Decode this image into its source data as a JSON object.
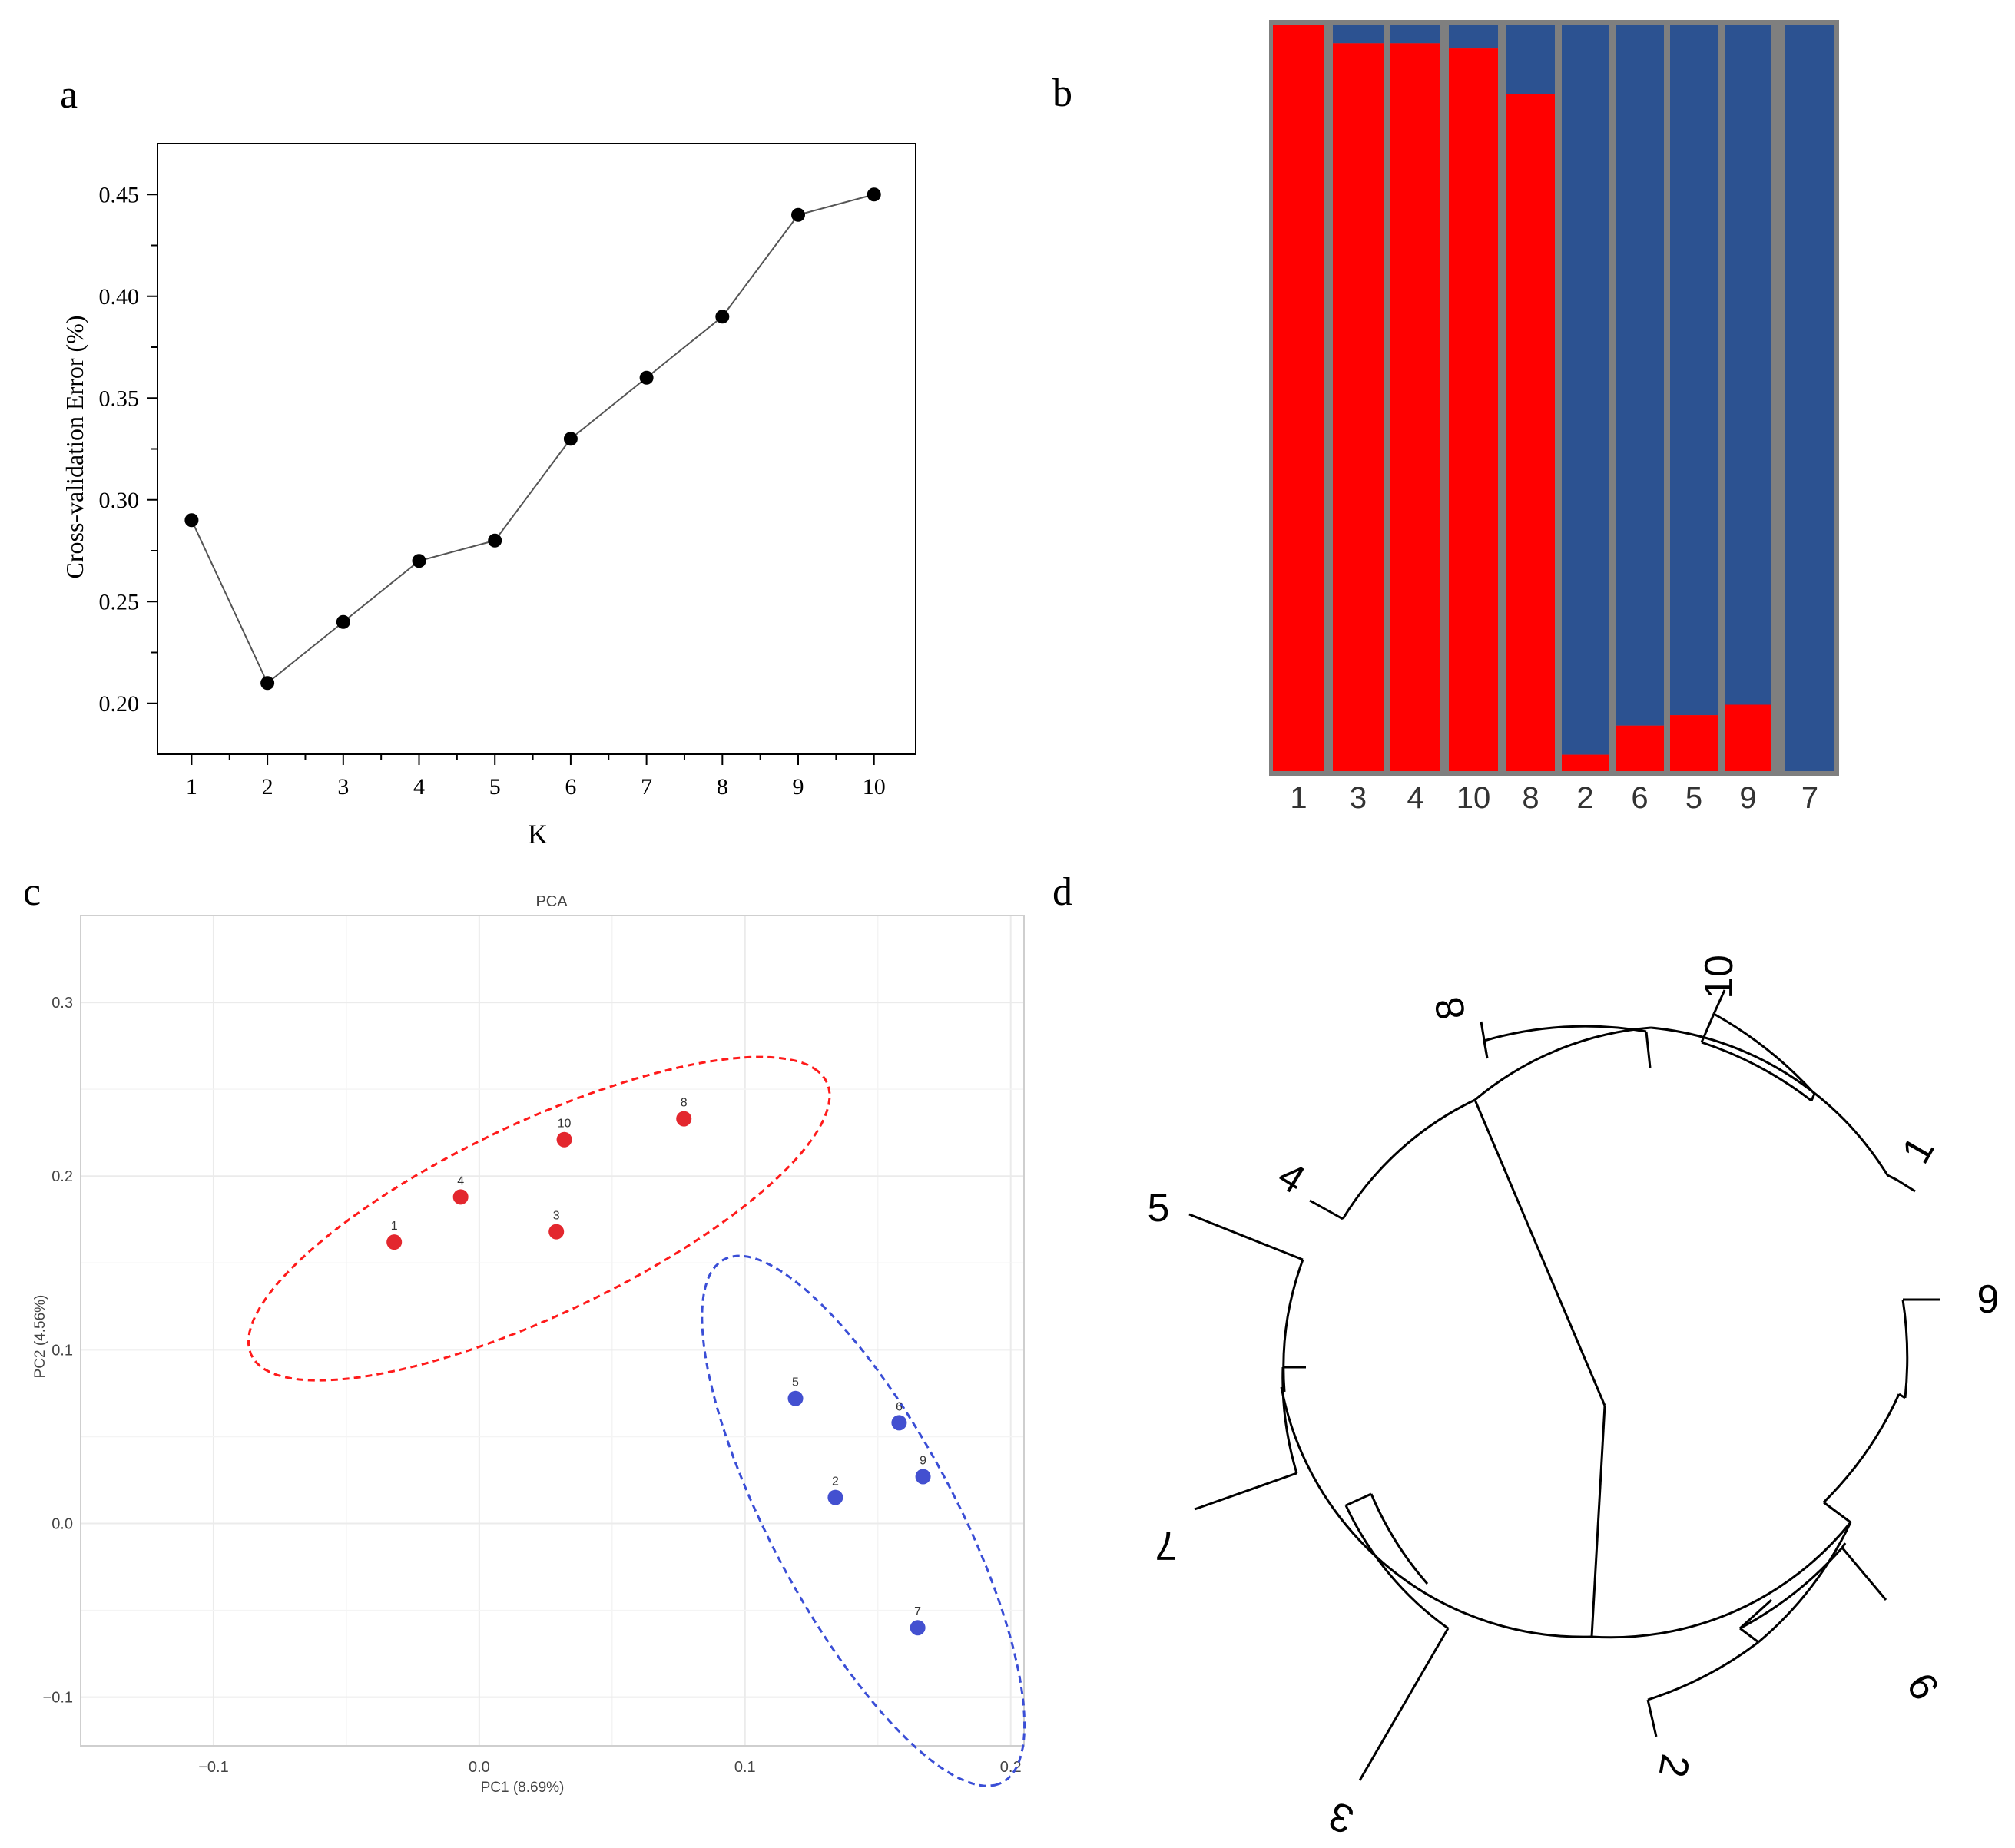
{
  "panel_labels": [
    "a",
    "b",
    "c",
    "d"
  ],
  "colors": {
    "red": "#ff0000",
    "blue": "#2c5291",
    "bar_frame": "#7f7f7f",
    "pca_red": "#e3272e",
    "pca_blue": "#4350d0",
    "pca_red_ellipse": "#ff1a1a",
    "pca_blue_ellipse": "#3a4ed6"
  },
  "chart_data": [
    {
      "id": "a",
      "type": "line",
      "title": "",
      "xlabel": "K",
      "ylabel": "Cross-validation Error (%)",
      "x": [
        1,
        2,
        3,
        4,
        5,
        6,
        7,
        8,
        9,
        10
      ],
      "y": [
        0.29,
        0.21,
        0.24,
        0.27,
        0.28,
        0.33,
        0.36,
        0.39,
        0.44,
        0.45
      ],
      "xlim": [
        0.55,
        10.55
      ],
      "ylim": [
        0.175,
        0.475
      ],
      "xticks": [
        "1",
        "2",
        "3",
        "4",
        "5",
        "6",
        "7",
        "8",
        "9",
        "10"
      ],
      "yticks": [
        "0.20",
        "0.25",
        "0.30",
        "0.35",
        "0.40",
        "0.45"
      ],
      "ytick_values": [
        0.2,
        0.25,
        0.3,
        0.35,
        0.4,
        0.45
      ],
      "grid": false
    },
    {
      "id": "b",
      "type": "bar",
      "stacked": true,
      "categories": [
        "1",
        "3",
        "4",
        "10",
        "8",
        "2",
        "6",
        "5",
        "9",
        "7"
      ],
      "series": [
        {
          "name": "red",
          "values": [
            1.0,
            0.975,
            0.975,
            0.968,
            0.907,
            0.022,
            0.061,
            0.075,
            0.089,
            0.0
          ]
        },
        {
          "name": "blue",
          "values": [
            0.0,
            0.025,
            0.025,
            0.032,
            0.093,
            0.978,
            0.939,
            0.925,
            0.911,
            1.0
          ]
        }
      ],
      "ylim": [
        0,
        1
      ]
    },
    {
      "id": "c",
      "type": "scatter",
      "title": "PCA",
      "xlabel": "PC1 (8.69%)",
      "ylabel": "PC2 (4.56%)",
      "xlim": [
        -0.15,
        0.205
      ],
      "ylim": [
        -0.128,
        0.35
      ],
      "xticks": [
        "−0.1",
        "0.0",
        "0.1",
        "0.2"
      ],
      "xtick_values": [
        -0.1,
        0.0,
        0.1,
        0.2
      ],
      "yticks": [
        "−0.1",
        "0.0",
        "0.1",
        "0.2",
        "0.3"
      ],
      "ytick_values": [
        -0.1,
        0.0,
        0.1,
        0.2,
        0.3
      ],
      "grid": true,
      "points": [
        {
          "label": "1",
          "x": -0.032,
          "y": 0.162,
          "group": "red"
        },
        {
          "label": "4",
          "x": -0.007,
          "y": 0.188,
          "group": "red"
        },
        {
          "label": "3",
          "x": 0.029,
          "y": 0.168,
          "group": "red"
        },
        {
          "label": "10",
          "x": 0.032,
          "y": 0.221,
          "group": "red"
        },
        {
          "label": "8",
          "x": 0.077,
          "y": 0.233,
          "group": "red"
        },
        {
          "label": "5",
          "x": 0.119,
          "y": 0.072,
          "group": "blue"
        },
        {
          "label": "6",
          "x": 0.158,
          "y": 0.058,
          "group": "blue"
        },
        {
          "label": "2",
          "x": 0.134,
          "y": 0.015,
          "group": "blue"
        },
        {
          "label": "9",
          "x": 0.167,
          "y": 0.027,
          "group": "blue"
        },
        {
          "label": "7",
          "x": 0.165,
          "y": -0.06,
          "group": "blue"
        }
      ],
      "ellipses": [
        {
          "group": "red",
          "cx": 0.0225,
          "cy": 0.1755,
          "rx": 0.135,
          "ry": 0.049,
          "angle_deg": 39
        },
        {
          "group": "blue",
          "cx": 0.1445,
          "cy": 0.0015,
          "rx": 0.16,
          "ry": 0.037,
          "angle_deg": -72
        }
      ]
    },
    {
      "id": "d",
      "type": "dendrogram",
      "layout": "circular",
      "leaves": [
        "10",
        "1",
        "9",
        "6",
        "2",
        "3",
        "7",
        "5",
        "4",
        "8"
      ]
    }
  ]
}
